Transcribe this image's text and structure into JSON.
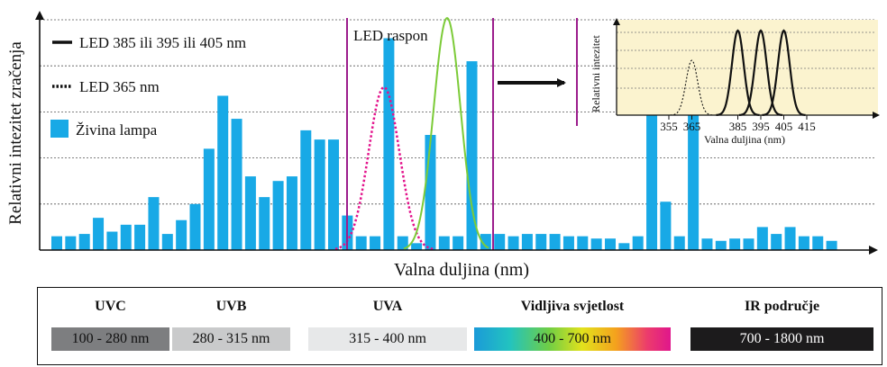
{
  "chart_data": {
    "type": "bar",
    "ylabel": "Relativni intezitet zračenja",
    "xlabel": "Valna duljina (nm)",
    "grid": true,
    "mercury_values": [
      0.06,
      0.06,
      0.07,
      0.14,
      0.08,
      0.11,
      0.11,
      0.23,
      0.07,
      0.13,
      0.2,
      0.44,
      0.67,
      0.57,
      0.32,
      0.23,
      0.3,
      0.32,
      0.52,
      0.48,
      0.48,
      0.15,
      0.06,
      0.06,
      0.92,
      0.06,
      0.03,
      0.5,
      0.06,
      0.06,
      0.82,
      0.07,
      0.07,
      0.06,
      0.07,
      0.07,
      0.07,
      0.06,
      0.06,
      0.05,
      0.05,
      0.03,
      0.06,
      0.92,
      0.21,
      0.06,
      0.71,
      0.05,
      0.04,
      0.05,
      0.05,
      0.1,
      0.07,
      0.1,
      0.06,
      0.06,
      0.04
    ],
    "led_range_label": "LED raspon",
    "legend": [
      {
        "label": "LED 385 ili 395 ili 405 nm",
        "style": "solid",
        "color": "#111111"
      },
      {
        "label": "LED 365 nm",
        "style": "dotted",
        "color": "#111111"
      },
      {
        "label": "Živina lampa",
        "style": "bar",
        "color": "#18a9e6"
      }
    ],
    "series_colors": {
      "mercury": "#18a9e6",
      "led_dotted": "#e3138c",
      "led_green": "#7ccb38",
      "led_range": "#9c1d8c"
    },
    "inset": {
      "ylabel": "Relativni intezitet",
      "xlabel": "Valna duljina (nm)",
      "ticks": [
        "355",
        "365",
        "385",
        "395",
        "405",
        "415"
      ],
      "peaks_solid": [
        385,
        395,
        405
      ],
      "peak_dotted": 365,
      "background": "#fbf3cf"
    }
  },
  "bands": [
    {
      "name": "UVC",
      "range": "100 - 280 nm",
      "bg": "#7d7e80",
      "fg": "#111111"
    },
    {
      "name": "UVB",
      "range": "280 - 315 nm",
      "bg": "#c9cacb",
      "fg": "#111111"
    },
    {
      "name": "UVA",
      "range": "315 - 400 nm",
      "bg": "#e7e8e9",
      "fg": "#111111"
    },
    {
      "name": "Vidljiva svjetlost",
      "range": "400 - 700 nm",
      "bg": "spectrum",
      "fg": "#111111"
    },
    {
      "name": "IR područje",
      "range": "700 - 1800 nm",
      "bg": "#1c1b1c",
      "fg": "#ffffff"
    }
  ]
}
